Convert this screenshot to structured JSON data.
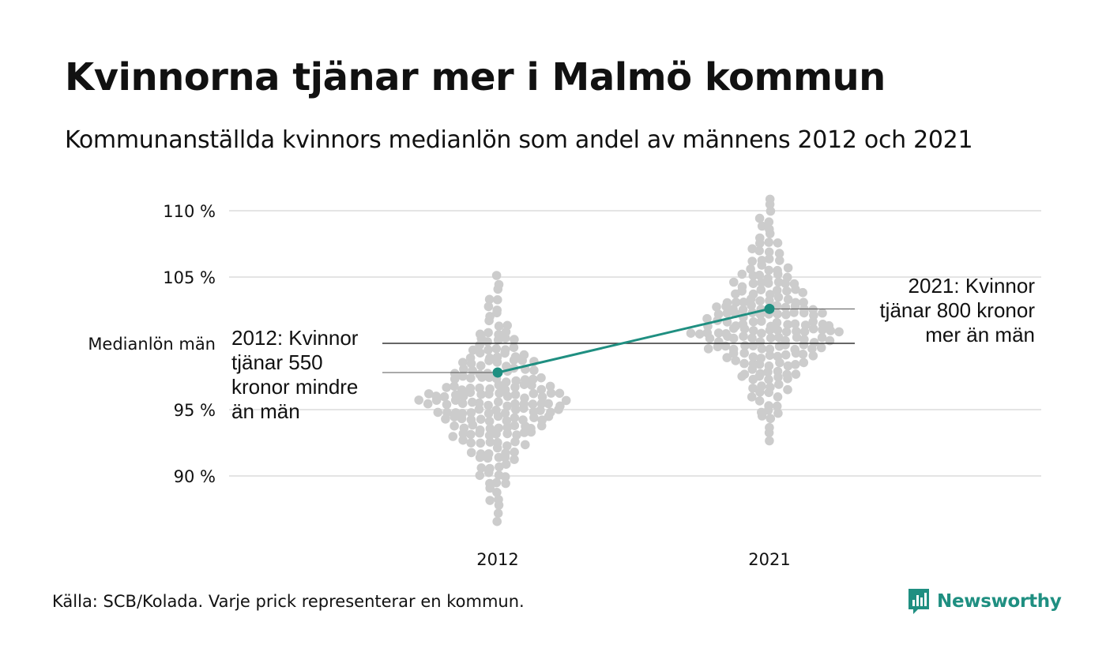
{
  "title": "Kvinnorna tjänar mer i Malmö kommun",
  "subtitle": "Kommunanställda kvinnors medianlön som andel av männens 2012 och 2021",
  "source": "Källa: SCB/Kolada. Varje prick representerar en kommun.",
  "brand": "Newsworthy",
  "colors": {
    "highlight": "#1f8f81",
    "dots": "#cccccc",
    "grid": "#e4e4e4",
    "reference": "#333333"
  },
  "chart_data": {
    "type": "scatter",
    "title": "Kvinnorna tjänar mer i Malmö kommun",
    "subtitle": "Kommunanställda kvinnors medianlön som andel av männens 2012 och 2021",
    "categories": [
      "2012",
      "2021"
    ],
    "ylim": [
      86,
      112
    ],
    "y_ticks": [
      {
        "value": 90,
        "label": "90 %"
      },
      {
        "value": 95,
        "label": "95 %"
      },
      {
        "value": 100,
        "label": "Medianlön män"
      },
      {
        "value": 105,
        "label": "105 %"
      },
      {
        "value": 110,
        "label": "110 %"
      }
    ],
    "grid": true,
    "reference_line": {
      "value": 100,
      "label": "Medianlön män"
    },
    "beeswarm": [
      {
        "category": "2012",
        "min": 86.5,
        "max": 105.2,
        "center": 95.5,
        "count": 290
      },
      {
        "category": "2021",
        "min": 92.5,
        "max": 111.3,
        "center": 100.8,
        "count": 290
      }
    ],
    "highlight": {
      "name": "Malmö",
      "points": [
        {
          "x": "2012",
          "y": 97.8
        },
        {
          "x": "2021",
          "y": 102.6
        }
      ]
    },
    "annotations": [
      {
        "category": "2012",
        "lines": [
          "2012: Kvinnor",
          "tjänar 550",
          "kronor mindre",
          "än män"
        ]
      },
      {
        "category": "2021",
        "lines": [
          "2021: Kvinnor",
          "tjänar 800 kronor",
          "mer än män"
        ]
      }
    ]
  }
}
